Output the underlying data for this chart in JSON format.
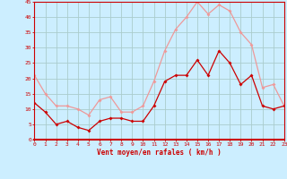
{
  "hours": [
    0,
    1,
    2,
    3,
    4,
    5,
    6,
    7,
    8,
    9,
    10,
    11,
    12,
    13,
    14,
    15,
    16,
    17,
    18,
    19,
    20,
    21,
    22,
    23
  ],
  "wind_mean": [
    12,
    9,
    5,
    6,
    4,
    3,
    6,
    7,
    7,
    6,
    6,
    11,
    19,
    21,
    21,
    26,
    21,
    29,
    25,
    18,
    21,
    11,
    10,
    11
  ],
  "wind_gust": [
    21,
    15,
    11,
    11,
    10,
    8,
    13,
    14,
    9,
    9,
    11,
    19,
    29,
    36,
    40,
    45,
    41,
    44,
    42,
    35,
    31,
    17,
    18,
    11
  ],
  "bg_color": "#cceeff",
  "grid_color": "#aacccc",
  "mean_color": "#cc0000",
  "gust_color": "#ee9999",
  "xlabel": "Vent moyen/en rafales ( km/h )",
  "xlabel_color": "#cc0000",
  "tick_color": "#cc0000",
  "ylim": [
    0,
    45
  ],
  "yticks": [
    0,
    5,
    10,
    15,
    20,
    25,
    30,
    35,
    40,
    45
  ]
}
